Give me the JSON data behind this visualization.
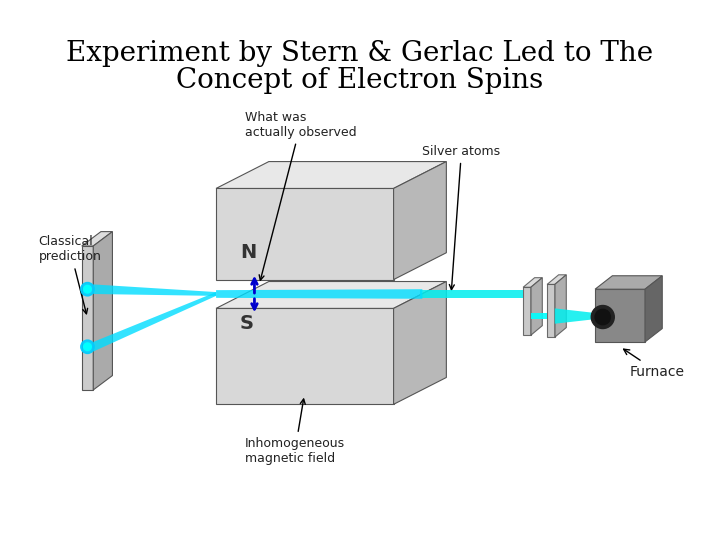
{
  "title_line1": "Experiment by Stern & Gerlac Led to The",
  "title_line2": "Concept of Electron Spins",
  "title_fontsize": 20,
  "title_font": "serif",
  "bg_color": "#ffffff",
  "labels": {
    "classical_prediction": "Classical\nprediction",
    "what_observed": "What was\nactually observed",
    "silver_atoms": "Silver atoms",
    "inhomogeneous": "Inhomogeneous\nmagnetic field",
    "furnace": "Furnace",
    "N": "N",
    "S": "S"
  },
  "colors": {
    "magnet_face": "#d8d8d8",
    "magnet_side": "#b8b8b8",
    "magnet_top": "#e8e8e8",
    "beam_cyan": "#00ffff",
    "beam_cyan2": "#00e5e5",
    "screen_color": "#c8c8c8",
    "screen_face": "#d5d5d5",
    "furnace_color": "#888888",
    "arrow_color": "#0000cc",
    "text_color": "#000000",
    "label_color": "#222222"
  }
}
